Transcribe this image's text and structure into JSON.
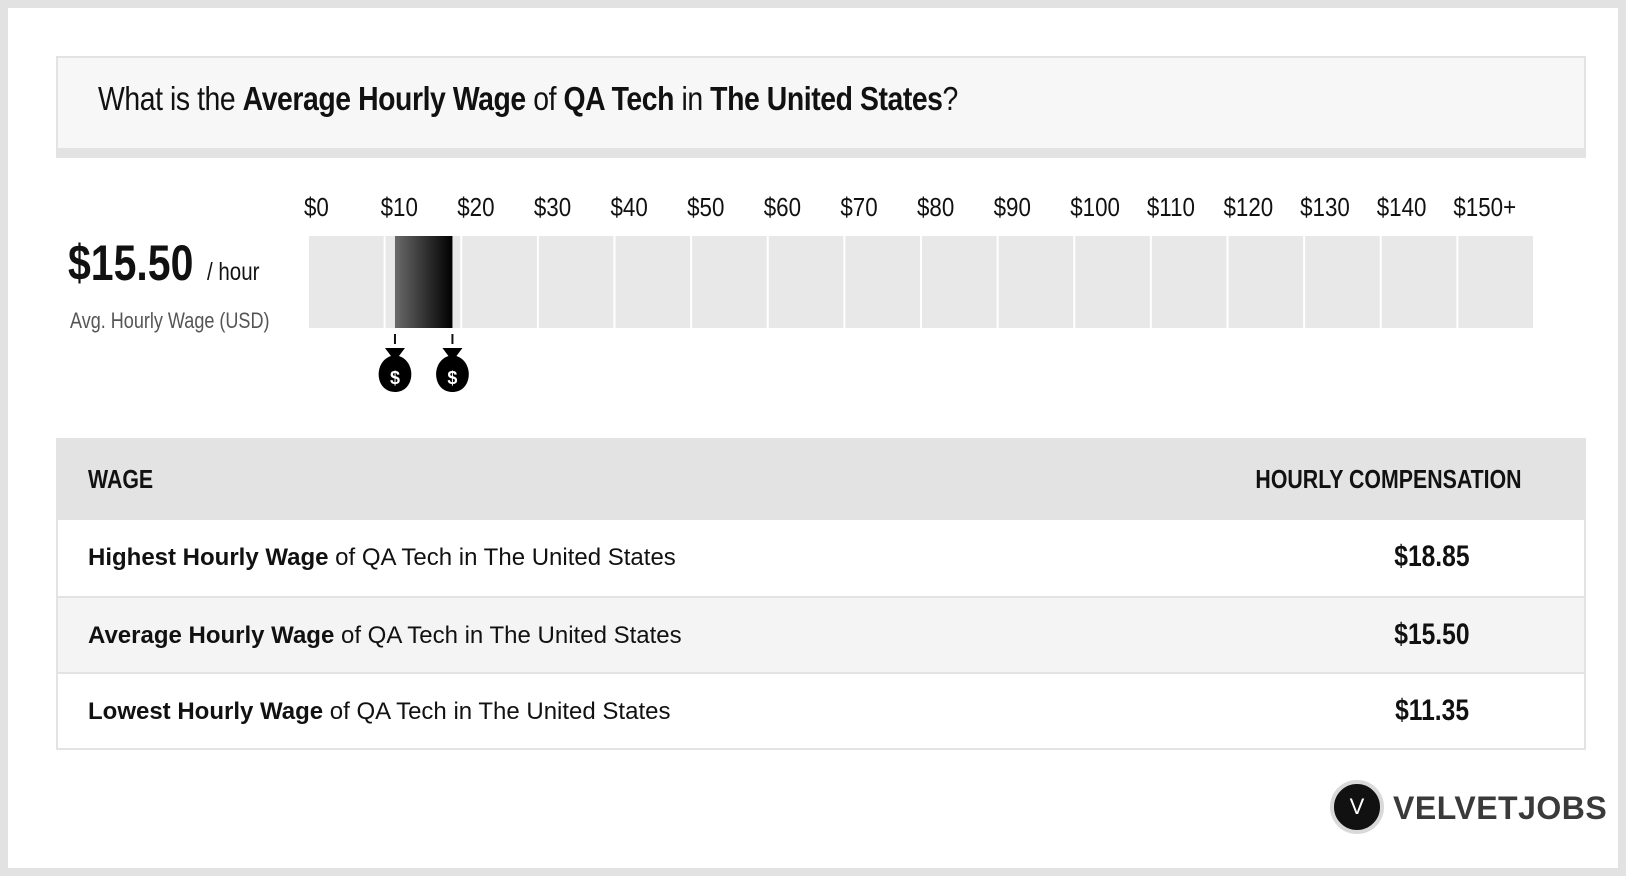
{
  "title": {
    "prefix": "What is the ",
    "metric": "Average Hourly Wage",
    "of": " of ",
    "job": "QA Tech",
    "in": " in ",
    "location": "The United States",
    "suffix": "?"
  },
  "summary": {
    "value": "$15.50",
    "unit": "/ hour",
    "label": "Avg. Hourly Wage (USD)"
  },
  "chart_data": {
    "type": "bar",
    "orientation": "horizontal-range",
    "x_ticks": [
      "$0",
      "$10",
      "$20",
      "$30",
      "$40",
      "$50",
      "$60",
      "$70",
      "$80",
      "$90",
      "$100",
      "$110",
      "$120",
      "$130",
      "$140",
      "$150+"
    ],
    "xlim": [
      0,
      160
    ],
    "range": {
      "low": 11.35,
      "high": 18.85,
      "average": 15.5
    },
    "markers": [
      {
        "value": 11.35,
        "label": "$"
      },
      {
        "value": 18.85,
        "label": "$"
      }
    ],
    "colors": {
      "track": "#e8e8e8",
      "bar_start": "#6a6a6a",
      "bar_end": "#000000",
      "marker": "#000000"
    }
  },
  "table": {
    "header_left": "WAGE",
    "header_right": "HOURLY COMPENSATION",
    "rows": [
      {
        "bold": "Highest Hourly Wage",
        "rest": " of QA Tech in The United States",
        "value": "$18.85"
      },
      {
        "bold": "Average Hourly Wage",
        "rest": " of QA Tech in The United States",
        "value": "$15.50"
      },
      {
        "bold": "Lowest Hourly Wage",
        "rest": " of QA Tech in The United States",
        "value": "$11.35"
      }
    ]
  },
  "logo": {
    "mark": "V",
    "text": "VELVETJOBS"
  }
}
